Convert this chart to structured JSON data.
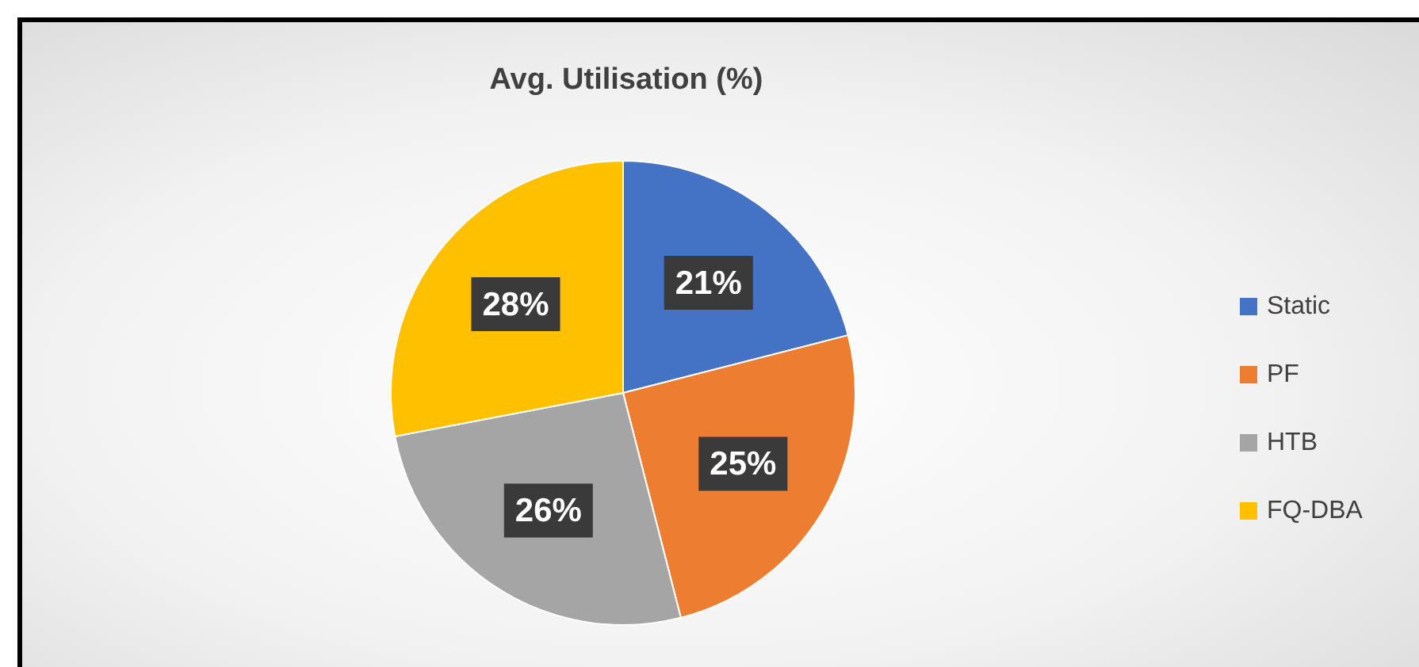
{
  "chart_data": {
    "type": "pie",
    "title": "Avg. Utilisation (%)",
    "categories": [
      "Static",
      "PF",
      "HTB",
      "FQ-DBA"
    ],
    "values": [
      21,
      25,
      26,
      28
    ],
    "colors": [
      "#4472c4",
      "#ed7d31",
      "#a5a5a5",
      "#ffc000"
    ],
    "value_labels": [
      "21%",
      "25%",
      "26%",
      "28%"
    ],
    "legend": "right"
  }
}
